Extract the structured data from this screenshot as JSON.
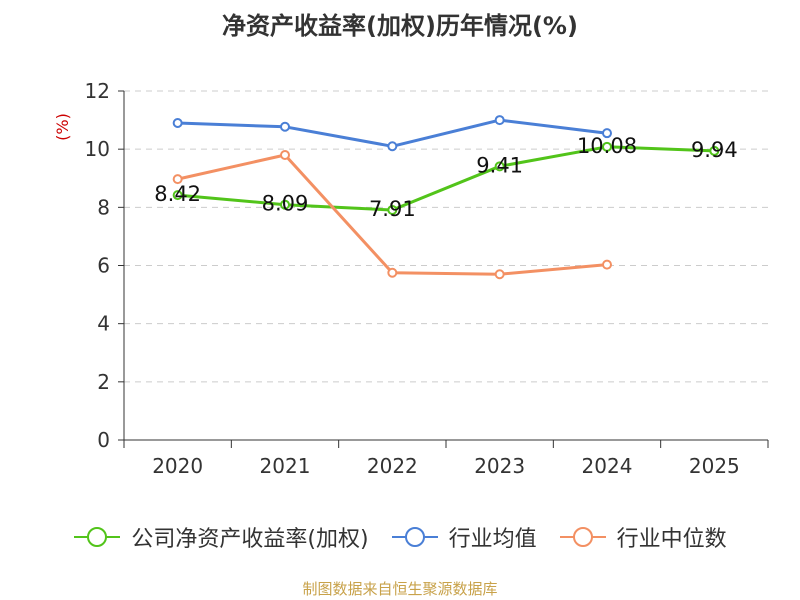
{
  "title": "净资产收益率(加权)历年情况(%)",
  "source": "制图数据来自恒生聚源数据库",
  "chart_data": {
    "type": "line",
    "title": "净资产收益率(加权)历年情况(%)",
    "ylabel": "(%)",
    "xlabel": "",
    "categories": [
      "2020",
      "2021",
      "2022",
      "2023",
      "2024",
      "2025"
    ],
    "ylim": [
      0,
      12
    ],
    "yticks": [
      0,
      2,
      4,
      6,
      8,
      10,
      12
    ],
    "grid": true,
    "legend_position": "bottom",
    "series": [
      {
        "name": "公司净资产收益率(加权)",
        "color": "#52c41a",
        "values": [
          8.42,
          8.09,
          7.91,
          9.41,
          10.08,
          9.94
        ],
        "labels": [
          "8.42",
          "8.09",
          "7.91",
          "9.41",
          "10.08",
          "9.94"
        ]
      },
      {
        "name": "行业均值",
        "color": "#4a7fd6",
        "values": [
          10.9,
          10.77,
          10.1,
          11.0,
          10.55,
          null
        ]
      },
      {
        "name": "行业中位数",
        "color": "#f39063",
        "values": [
          8.97,
          9.8,
          5.75,
          5.7,
          6.03,
          null
        ]
      }
    ]
  }
}
